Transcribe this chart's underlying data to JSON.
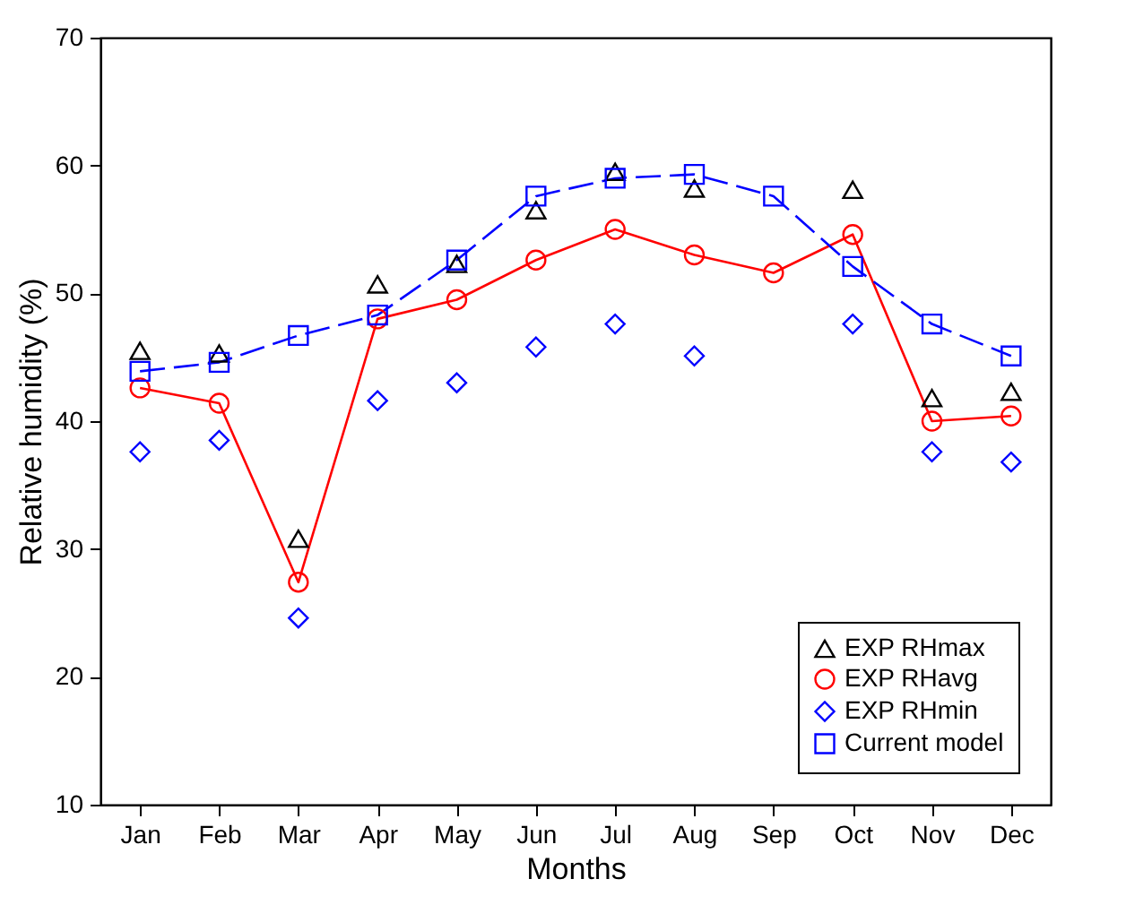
{
  "chart_data": {
    "type": "line",
    "xlabel": "Months",
    "ylabel": "Relative humidity (%)",
    "categories": [
      "Jan",
      "Feb",
      "Mar",
      "Apr",
      "May",
      "Jun",
      "Jul",
      "Aug",
      "Sep",
      "Oct",
      "Nov",
      "Dec"
    ],
    "series": [
      {
        "name": "EXP RHmax",
        "type": "scatter",
        "color": "#000000",
        "marker": "triangle",
        "values": [
          45.5,
          45.3,
          30.8,
          50.7,
          52.3,
          56.5,
          59.5,
          58.2,
          null,
          58.1,
          41.8,
          42.3
        ]
      },
      {
        "name": "EXP RHavg",
        "color": "#ff0000",
        "marker": "circle",
        "line_style": "solid",
        "values": [
          42.6,
          41.4,
          27.4,
          48.0,
          49.5,
          52.6,
          55.0,
          53.0,
          51.6,
          54.6,
          40.0,
          40.4
        ]
      },
      {
        "name": "EXP RHmin",
        "type": "scatter",
        "color": "#0000ff",
        "marker": "diamond",
        "values": [
          37.6,
          38.5,
          24.6,
          41.6,
          43.0,
          45.8,
          47.6,
          45.1,
          null,
          47.6,
          37.6,
          36.8
        ]
      },
      {
        "name": "Current model",
        "color": "#0000ff",
        "marker": "square",
        "line_style": "dashed",
        "values": [
          43.9,
          44.6,
          46.7,
          48.3,
          52.6,
          57.6,
          59.0,
          59.3,
          57.6,
          52.1,
          47.6,
          45.1
        ]
      }
    ],
    "ylim": [
      10,
      70
    ],
    "yticks": [
      10,
      20,
      30,
      40,
      50,
      60,
      70
    ],
    "grid": false,
    "legend": "bottom right"
  }
}
